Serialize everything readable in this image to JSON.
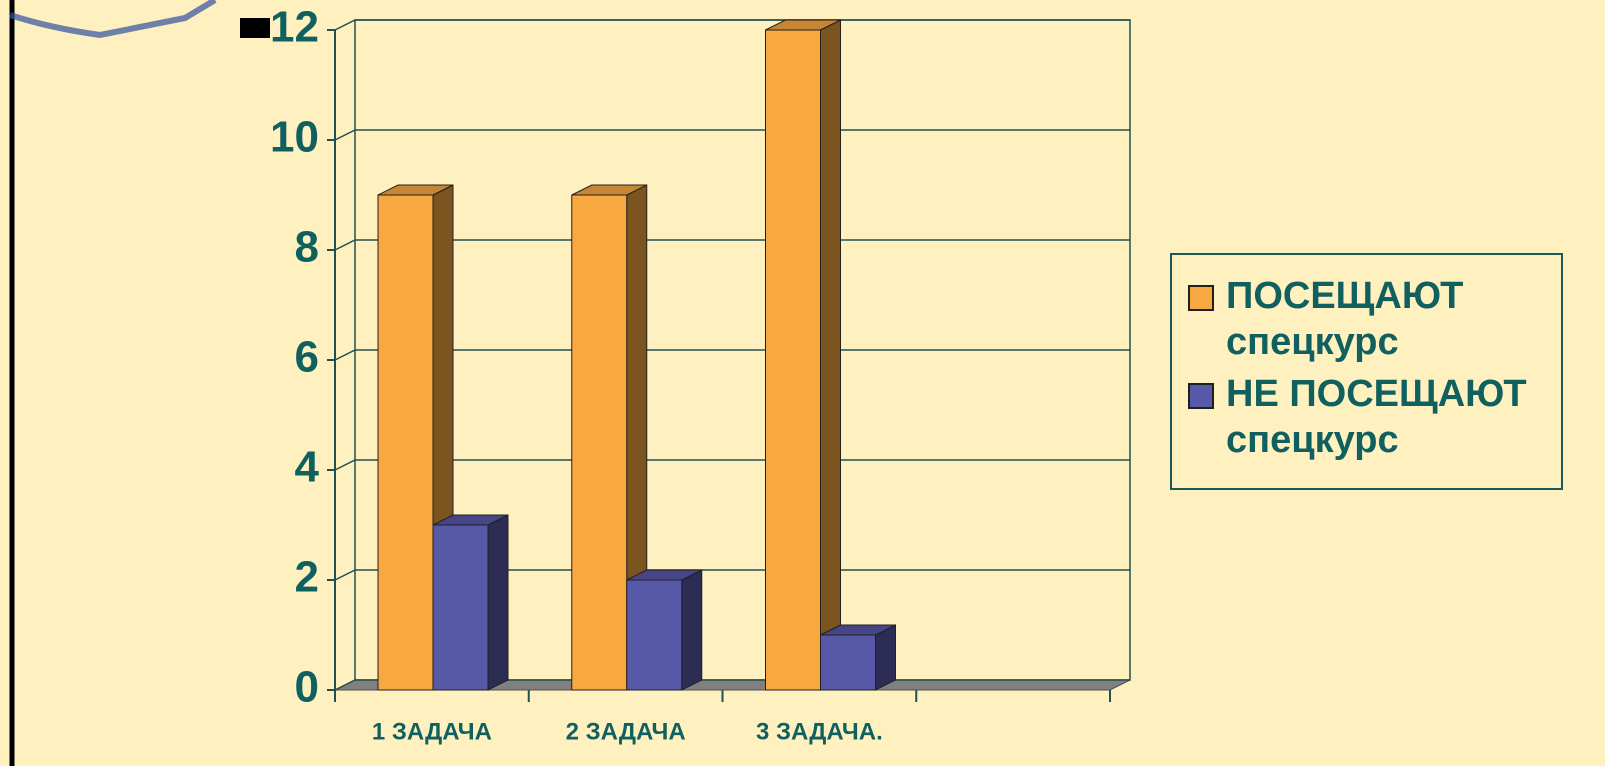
{
  "chart_data": {
    "type": "bar",
    "categories": [
      "1 ЗАДАЧА",
      "2 ЗАДАЧА",
      "3 ЗАДАЧА.",
      null
    ],
    "series": [
      {
        "name": "ПОСЕЩАЮТ спецкурс",
        "color": "#F8A840",
        "values": [
          9,
          9,
          12,
          null
        ]
      },
      {
        "name": "НЕ ПОСЕЩАЮТ спецкурс",
        "color": "#5858A8",
        "values": [
          3,
          2,
          1,
          null
        ]
      }
    ],
    "ylim": [
      0,
      12
    ],
    "yticks": [
      0,
      2,
      4,
      6,
      8,
      10,
      12
    ],
    "grid": true,
    "legend": "right"
  }
}
